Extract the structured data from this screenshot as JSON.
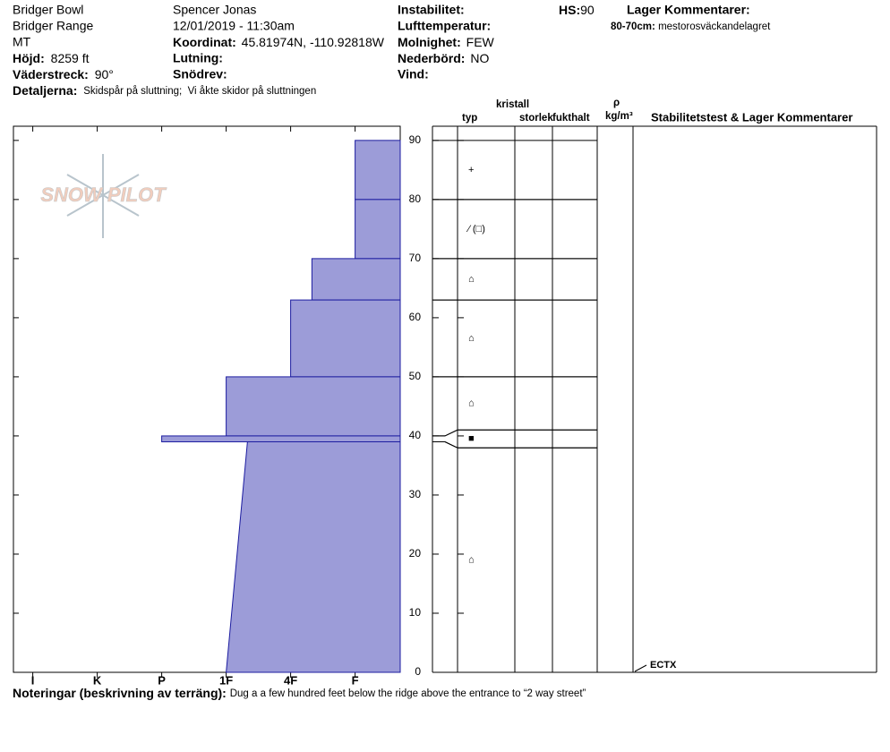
{
  "header": {
    "location": "Bridger Bowl",
    "range": "Bridger Range",
    "state": "MT",
    "elevation": {
      "label": "Höjd:",
      "value": "8259 ft"
    },
    "aspect": {
      "label": "Väderstreck:",
      "value": "90°"
    },
    "details": {
      "label": "Detaljerna:",
      "value": "Skidspår på sluttning;  Vi åkte skidor på sluttningen"
    },
    "observer": "Spencer Jonas",
    "datetime": "12/01/2019 - 11:30am",
    "coordinates": {
      "label": "Koordinat:",
      "value": "45.81974N, -110.92818W"
    },
    "slope": {
      "label": "Lutning:"
    },
    "wind_loading": {
      "label": "Snödrev:"
    },
    "instability": {
      "label": "Instabilitet:"
    },
    "air_temp": {
      "label": "Lufttemperatur:"
    },
    "sky": {
      "label": "Molnighet:",
      "value": "FEW"
    },
    "precip": {
      "label": "Nederbörd:",
      "value": "NO"
    },
    "wind": {
      "label": "Vind:"
    },
    "hs": {
      "label": "HS:",
      "value": "90"
    },
    "layer_comments": {
      "title": "Lager Kommentarer:",
      "items": [
        {
          "label": "80-70cm:",
          "text": "mestorosväckandelagret"
        }
      ]
    }
  },
  "logo": "SNOW PILOT",
  "columns": {
    "crystal": "kristall",
    "type": "typ",
    "size": "storlek",
    "moisture": "fukthalt",
    "rho": "ρ",
    "density_unit": "kg/m³",
    "stability": "Stabilitetstest & Lager Kommentarer"
  },
  "chart_data": {
    "type": "snow-profile",
    "ylim": [
      0,
      92.4
    ],
    "yticks": [
      0,
      10,
      20,
      30,
      40,
      50,
      60,
      70,
      80,
      90
    ],
    "xlim": [
      6.3,
      0.3
    ],
    "xticks": [
      {
        "value": 6,
        "label": "I"
      },
      {
        "value": 5,
        "label": "K"
      },
      {
        "value": 4,
        "label": "P"
      },
      {
        "value": 3,
        "label": "1F"
      },
      {
        "value": 2,
        "label": "4F"
      },
      {
        "value": 1,
        "label": "F"
      }
    ],
    "color": "#9c9cd8",
    "layers": [
      {
        "top": 90,
        "bottom": 80,
        "hardness": 1,
        "grain": "+"
      },
      {
        "top": 80,
        "bottom": 70,
        "hardness": 1,
        "grain": "⁄ (□)"
      },
      {
        "top": 70,
        "bottom": 63,
        "hardness": 1.67,
        "grain": "⌂"
      },
      {
        "top": 63,
        "bottom": 50,
        "hardness": 2,
        "grain": "⌂"
      },
      {
        "top": 50,
        "bottom": 40,
        "hardness": 3,
        "grain": "⌂"
      },
      {
        "top": 40,
        "bottom": 39,
        "hardness": 4,
        "grain": "■"
      },
      {
        "top": 39,
        "bottom": 0,
        "hardness": 2.67,
        "hardness_bottom": 3,
        "grain": "⌂"
      }
    ]
  },
  "stability_tests": [
    {
      "label": "ECTX",
      "depth": 0
    }
  ],
  "notes": {
    "label": "Noteringar (beskrivning av terräng):",
    "text": "Dug a a few hundred feet below the ridge above the entrance to “2 way street”"
  }
}
